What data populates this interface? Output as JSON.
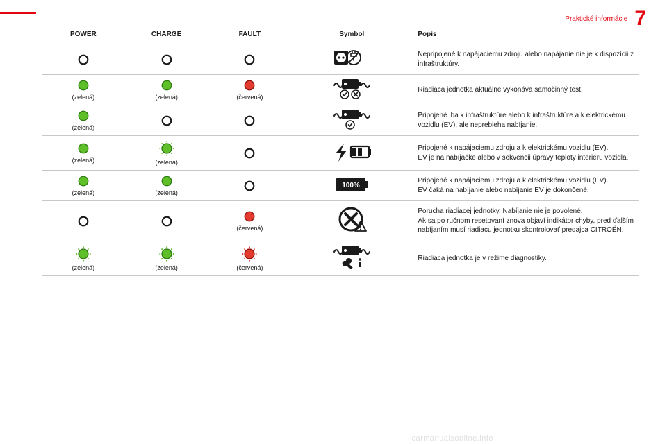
{
  "page": {
    "header_label": "Praktické informácie",
    "chapter_number": "7",
    "footer": "carmanualsonline.info"
  },
  "colors": {
    "red": "#e20613",
    "green_fill": "#5fbf29",
    "green_stroke": "#2d7a0f",
    "red_fill": "#e33b2f",
    "red_stroke": "#8f130c",
    "black": "#1a1a1a",
    "grey_border": "#c8c8c8"
  },
  "headers": {
    "power": "POWER",
    "charge": "CHARGE",
    "fault": "FAULT",
    "symbol": "Symbol",
    "popis": "Popis"
  },
  "caption_labels": {
    "green": "(zelená)",
    "red": "(červená)"
  },
  "rows": [
    {
      "power": {
        "state": "off",
        "caption": ""
      },
      "charge": {
        "state": "off",
        "caption": ""
      },
      "fault": {
        "state": "off",
        "caption": ""
      },
      "symbol": "plug_no",
      "popis": "Nepripojené k napájaciemu zdroju alebo napájanie nie je k dispozícii z infraštruktúry."
    },
    {
      "power": {
        "state": "green",
        "caption": "(zelená)"
      },
      "charge": {
        "state": "green",
        "caption": "(zelená)"
      },
      "fault": {
        "state": "red",
        "caption": "(červená)"
      },
      "symbol": "selftest",
      "popis": "Riadiaca jednotka aktuálne vykonáva samočinný test."
    },
    {
      "power": {
        "state": "green",
        "caption": "(zelená)"
      },
      "charge": {
        "state": "off",
        "caption": ""
      },
      "fault": {
        "state": "off",
        "caption": ""
      },
      "symbol": "infra_ok",
      "popis": "Pripojené iba k infraštruktúre alebo k infraštruktúre a k elektrickému vozidlu (EV), ale neprebieha nabíjanie."
    },
    {
      "power": {
        "state": "green",
        "caption": "(zelená)"
      },
      "charge": {
        "state": "green_flash",
        "caption": "(zelená)"
      },
      "fault": {
        "state": "off",
        "caption": ""
      },
      "symbol": "charging",
      "popis": "Pripojené k napájaciemu zdroju a k elektrickému vozidlu (EV).\nEV je na nabíjačke alebo v sekvencii úpravy teploty interiéru vozidla."
    },
    {
      "power": {
        "state": "green",
        "caption": "(zelená)"
      },
      "charge": {
        "state": "green",
        "caption": "(zelená)"
      },
      "fault": {
        "state": "off",
        "caption": ""
      },
      "symbol": "full",
      "popis": "Pripojené k napájaciemu zdroju a k elektrickému vozidlu (EV).\nEV čaká na nabíjanie alebo nabíjanie EV je dokončené."
    },
    {
      "power": {
        "state": "off",
        "caption": ""
      },
      "charge": {
        "state": "off",
        "caption": ""
      },
      "fault": {
        "state": "red",
        "caption": "(červená)"
      },
      "symbol": "fault",
      "popis": "Porucha riadiacej jednotky. Nabíjanie nie je povolené.\nAk sa po ručnom resetovaní znova objaví indikátor chyby, pred ďalším nabíjaním musí riadiacu jednotku skontrolovať predajca CITROËN."
    },
    {
      "power": {
        "state": "green_flash",
        "caption": "(zelená)"
      },
      "charge": {
        "state": "green_flash",
        "caption": "(zelená)"
      },
      "fault": {
        "state": "red_flash",
        "caption": "(červená)"
      },
      "symbol": "diag",
      "popis": "Riadiaca jednotka je v režime diagnostiky."
    }
  ]
}
